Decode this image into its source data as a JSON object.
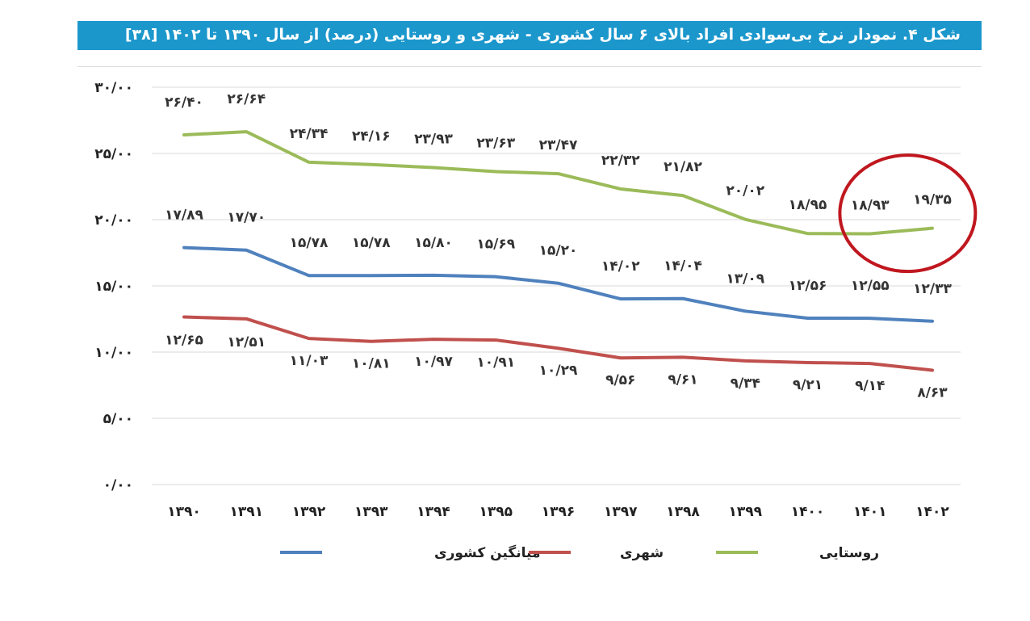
{
  "header": {
    "title": "شکل ۴. نمودار نرخ بی‌سوادی افراد بالای ۶ سال کشوری - شهری و روستایی (درصد) از سال ۱۳۹۰ تا ۱۴۰۲ [۳۸]"
  },
  "colors": {
    "title_bg": "#1b97cc",
    "rural": "#9bbb59",
    "urban": "#c0504d",
    "national": "#4f81bd",
    "highlight": "#c0171f"
  },
  "chart_data": {
    "type": "line",
    "title": "شکل ۴. نمودار نرخ بی‌سوادی افراد بالای ۶ سال کشوری - شهری و روستایی (درصد) از سال ۱۳۹۰ تا ۱۴۰۲ [۳۸]",
    "x": [
      "۱۳۹۰",
      "۱۳۹۱",
      "۱۳۹۲",
      "۱۳۹۳",
      "۱۳۹۴",
      "۱۳۹۵",
      "۱۳۹۶",
      "۱۳۹۷",
      "۱۳۹۸",
      "۱۳۹۹",
      "۱۴۰۰",
      "۱۴۰۱",
      "۱۴۰۲"
    ],
    "y_ticks": [
      "۰/۰۰",
      "۵/۰۰",
      "۱۰/۰۰",
      "۱۵/۰۰",
      "۲۰/۰۰",
      "۲۵/۰۰",
      "۳۰/۰۰"
    ],
    "y_tick_values": [
      0,
      5,
      10,
      15,
      20,
      25,
      30
    ],
    "ylim": [
      0,
      30
    ],
    "grid": true,
    "legend_position": "bottom",
    "highlight": "circle around rural 1401-1402",
    "series": [
      {
        "key": "rural",
        "name": "روستایی",
        "values": [
          26.4,
          26.64,
          24.34,
          24.16,
          23.93,
          23.63,
          23.47,
          22.32,
          21.82,
          20.02,
          18.95,
          18.93,
          19.35
        ],
        "labels": [
          "۲۶/۴۰",
          "۲۶/۶۴",
          "۲۴/۳۴",
          "۲۴/۱۶",
          "۲۳/۹۳",
          "۲۳/۶۳",
          "۲۳/۴۷",
          "۲۲/۳۲",
          "۲۱/۸۲",
          "۲۰/۰۲",
          "۱۸/۹۵",
          "۱۸/۹۳",
          "۱۹/۳۵"
        ]
      },
      {
        "key": "national",
        "name": "میانگین کشوری",
        "values": [
          17.89,
          17.7,
          15.78,
          15.78,
          15.8,
          15.69,
          15.2,
          14.02,
          14.04,
          13.09,
          12.56,
          12.55,
          12.33
        ],
        "labels": [
          "۱۷/۸۹",
          "۱۷/۷۰",
          "۱۵/۷۸",
          "۱۵/۷۸",
          "۱۵/۸۰",
          "۱۵/۶۹",
          "۱۵/۲۰",
          "۱۴/۰۲",
          "۱۴/۰۴",
          "۱۳/۰۹",
          "۱۲/۵۶",
          "۱۲/۵۵",
          "۱۲/۳۳"
        ]
      },
      {
        "key": "urban",
        "name": "شهری",
        "values": [
          12.65,
          12.51,
          11.03,
          10.81,
          10.97,
          10.91,
          10.29,
          9.56,
          9.61,
          9.34,
          9.21,
          9.14,
          8.63
        ],
        "labels": [
          "۱۲/۶۵",
          "۱۲/۵۱",
          "۱۱/۰۳",
          "۱۰/۸۱",
          "۱۰/۹۷",
          "۱۰/۹۱",
          "۱۰/۲۹",
          "۹/۵۶",
          "۹/۶۱",
          "۹/۳۴",
          "۹/۲۱",
          "۹/۱۴",
          "۸/۶۳"
        ]
      }
    ],
    "legend": [
      {
        "key": "national",
        "label": "میانگین کشوری"
      },
      {
        "key": "urban",
        "label": "شهری"
      },
      {
        "key": "rural",
        "label": "روستایی"
      }
    ]
  }
}
